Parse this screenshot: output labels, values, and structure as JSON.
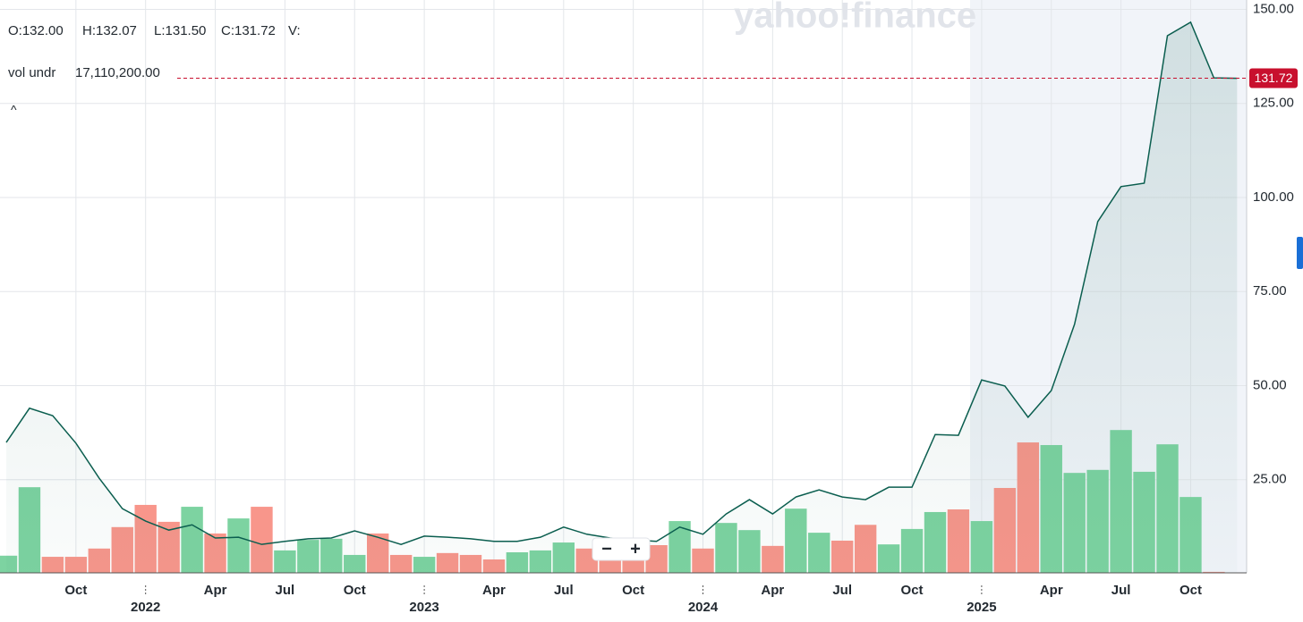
{
  "header": {
    "open": "O:132.00",
    "high": "H:132.07",
    "low": "L:131.50",
    "close": "C:131.72",
    "volume": "V:",
    "indicator_name": "vol undr",
    "indicator_value": "17,110,200.00",
    "collapse": "^"
  },
  "watermark": "yahoo!finance",
  "zoom": {
    "out": "−",
    "in": "+"
  },
  "chart_data": {
    "type": "line",
    "categories": [
      null,
      null,
      null,
      "Oct",
      null,
      null,
      "2022",
      null,
      null,
      "Apr",
      null,
      null,
      "Jul",
      null,
      null,
      "Oct",
      null,
      null,
      "2023",
      null,
      null,
      "Apr",
      null,
      null,
      "Jul",
      null,
      null,
      "Oct",
      null,
      null,
      "2024",
      null,
      null,
      "Apr",
      null,
      null,
      "Jul",
      null,
      null,
      "Oct",
      null,
      null,
      "2025",
      null,
      null,
      "Apr",
      null,
      null,
      "Jul",
      null,
      null,
      "Oct",
      null,
      null
    ],
    "series": [
      {
        "name": "Price",
        "color": "#0b5e4f",
        "values": [
          34.9,
          44,
          42,
          34.7,
          25.4,
          17.3,
          14,
          11.6,
          13,
          9.5,
          9.7,
          7.8,
          8.6,
          9.3,
          9.5,
          11.4,
          9.7,
          7.8,
          10,
          9.7,
          9.3,
          8.6,
          8.6,
          9.7,
          12.4,
          10.5,
          9.5,
          9,
          8.6,
          12.4,
          10.5,
          15.9,
          19.7,
          15.9,
          20.4,
          22.3,
          20.4,
          19.7,
          23,
          23,
          37,
          36.8,
          51.5,
          49.9,
          41.6,
          48.7,
          66.3,
          93.6,
          102.9,
          103.8,
          143,
          146.6,
          131.8,
          131.7
        ]
      },
      {
        "name": "Volume",
        "type": "bar",
        "values": [
          4.8,
          23,
          4.5,
          4.5,
          6.7,
          12.4,
          18.3,
          13.8,
          17.8,
          10.7,
          14.7,
          17.8,
          6.2,
          9,
          9.3,
          5,
          10.7,
          5,
          4.5,
          5.5,
          5,
          3.8,
          5.7,
          6.2,
          8.3,
          6.7,
          4.8,
          5.7,
          7.6,
          14,
          6.7,
          13.5,
          11.6,
          7.4,
          17.3,
          10.9,
          8.8,
          13,
          7.8,
          11.9,
          16.4,
          17.1,
          14,
          22.8,
          34.9,
          34.2,
          26.8,
          27.6,
          38.2,
          27.1,
          34.4,
          20.4,
          0.5,
          null
        ],
        "colors": [
          "#7dd3a1",
          "#7dd3a1",
          "#f8968b",
          "#f8968b",
          "#f8968b",
          "#f8968b",
          "#f8968b",
          "#f8968b",
          "#7dd3a1",
          "#f8968b",
          "#7dd3a1",
          "#f8968b",
          "#7dd3a1",
          "#7dd3a1",
          "#7dd3a1",
          "#7dd3a1",
          "#f8968b",
          "#f8968b",
          "#7dd3a1",
          "#f8968b",
          "#f8968b",
          "#f8968b",
          "#7dd3a1",
          "#7dd3a1",
          "#7dd3a1",
          "#f8968b",
          "#f8968b",
          "#f8968b",
          "#f8968b",
          "#7dd3a1",
          "#f8968b",
          "#7dd3a1",
          "#7dd3a1",
          "#f8968b",
          "#7dd3a1",
          "#7dd3a1",
          "#f8968b",
          "#f8968b",
          "#7dd3a1",
          "#7dd3a1",
          "#7dd3a1",
          "#f8968b",
          "#7dd3a1",
          "#f8968b",
          "#f8968b",
          "#7dd3a1",
          "#7dd3a1",
          "#7dd3a1",
          "#7dd3a1",
          "#7dd3a1",
          "#7dd3a1",
          "#7dd3a1",
          "#f8968b",
          "#f8968b"
        ]
      }
    ],
    "last_price": {
      "value": 131.72,
      "label": "131.72",
      "color": "#c8102e"
    },
    "ylim": [
      0,
      152.5
    ],
    "yticks": [
      {
        "value": 25,
        "label": "25.00"
      },
      {
        "value": 50,
        "label": "50.00"
      },
      {
        "value": 75,
        "label": "75.00"
      },
      {
        "value": 100,
        "label": "100.00"
      },
      {
        "value": 125,
        "label": "125.00"
      },
      {
        "value": 150,
        "label": "150.00"
      }
    ],
    "grid": true
  }
}
